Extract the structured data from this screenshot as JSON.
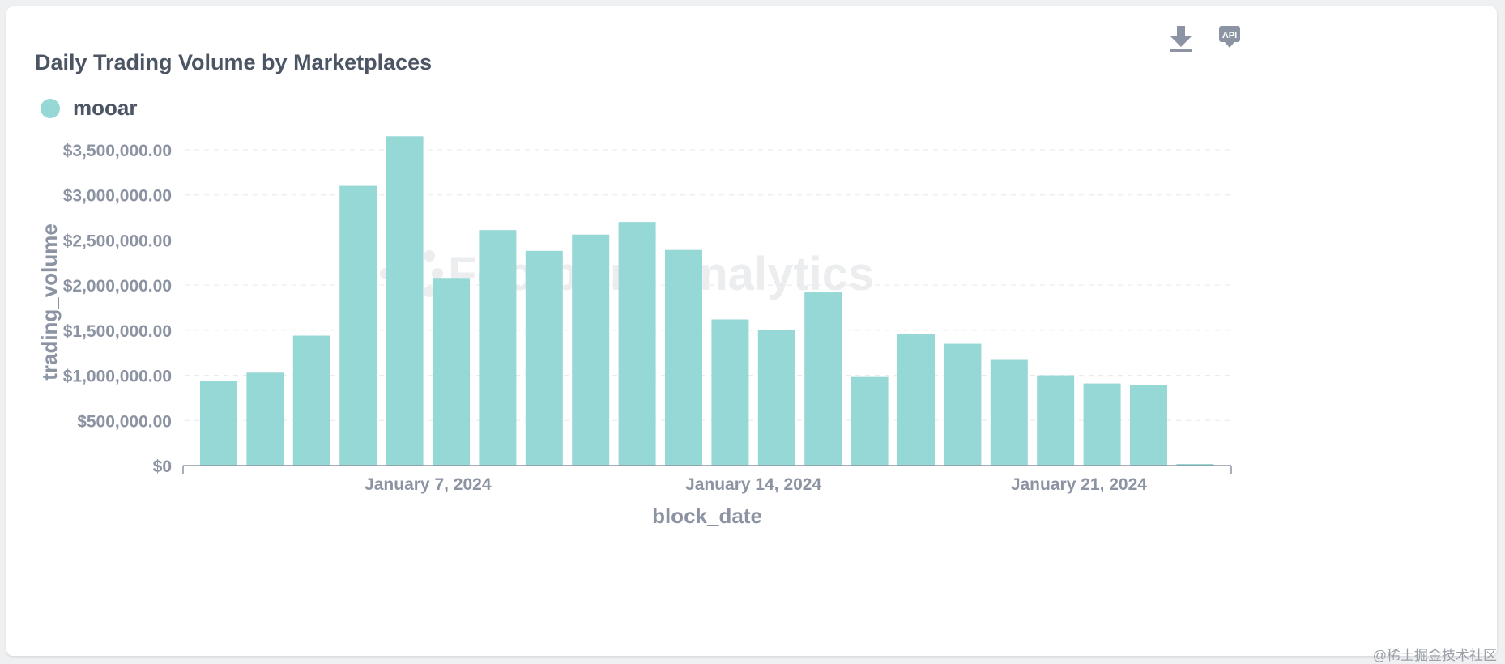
{
  "card": {
    "title": "Daily Trading Volume by Marketplaces",
    "download_icon": "download-icon",
    "api_icon": "api-icon",
    "api_label": "API"
  },
  "watermark": "Footprint Analytics",
  "corner_mark": "@稀土掘金技术社区",
  "colors": {
    "bar": "#96d8d6",
    "axis_text": "#8c93a2",
    "title": "#4c5563",
    "grid": "#e6e8eb"
  },
  "chart_data": {
    "type": "bar",
    "title": "Daily Trading Volume by Marketplaces",
    "xlabel": "block_date",
    "ylabel": "trading_volume",
    "ylim": [
      0,
      3500000
    ],
    "yticks": [
      "$0",
      "$500,000.00",
      "$1,000,000.00",
      "$1,500,000.00",
      "$2,000,000.00",
      "$2,500,000.00",
      "$3,000,000.00",
      "$3,500,000.00"
    ],
    "ytick_values": [
      0,
      500000,
      1000000,
      1500000,
      2000000,
      2500000,
      3000000,
      3500000
    ],
    "xtick_labels": [
      {
        "label": "January 7, 2024",
        "index": 4.5
      },
      {
        "label": "January 14, 2024",
        "index": 11.5
      },
      {
        "label": "January 21, 2024",
        "index": 18.5
      }
    ],
    "grid": true,
    "legend_position": "top-left",
    "series": [
      {
        "name": "mooar",
        "values": [
          940000,
          1030000,
          1440000,
          3100000,
          3650000,
          2080000,
          2610000,
          2380000,
          2560000,
          2700000,
          2390000,
          1620000,
          1500000,
          1920000,
          990000,
          1460000,
          1350000,
          1180000,
          1000000,
          910000,
          890000,
          15000
        ]
      }
    ]
  }
}
